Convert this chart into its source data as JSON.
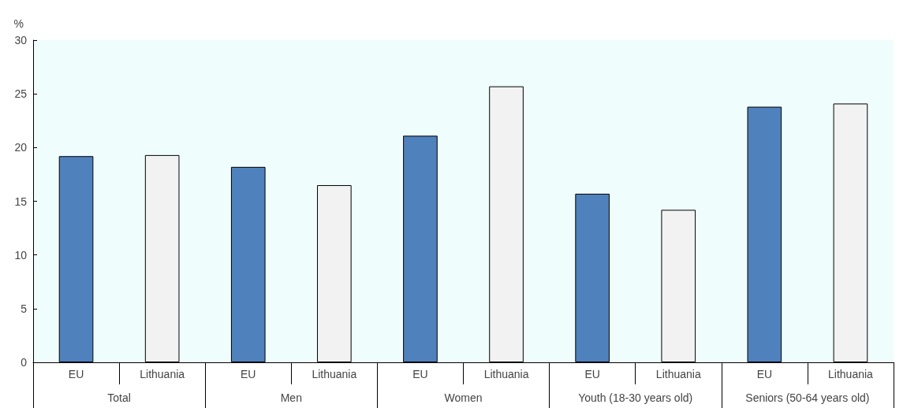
{
  "chart_data": {
    "type": "bar",
    "ylabel": "%",
    "categories": [
      "EU",
      "Lithuania",
      "EU",
      "Lithuania",
      "EU",
      "Lithuania",
      "EU",
      "Lithuania",
      "EU",
      "Lithuania"
    ],
    "values": [
      19.2,
      19.3,
      18.2,
      16.5,
      21.1,
      25.7,
      15.7,
      14.2,
      23.8,
      24.1
    ],
    "colors": [
      "#4f81bd",
      "#f2f2f2",
      "#4f81bd",
      "#f2f2f2",
      "#4f81bd",
      "#f2f2f2",
      "#4f81bd",
      "#f2f2f2",
      "#4f81bd",
      "#f2f2f2"
    ],
    "annotations": [
      "Total",
      "Men",
      "Women",
      "Youth (18-30 years old)",
      "Seniors (50-64 years old)"
    ],
    "ylim": [
      0,
      30
    ],
    "yticks": [
      0,
      5,
      10,
      15,
      20,
      25,
      30
    ],
    "grid": false
  }
}
